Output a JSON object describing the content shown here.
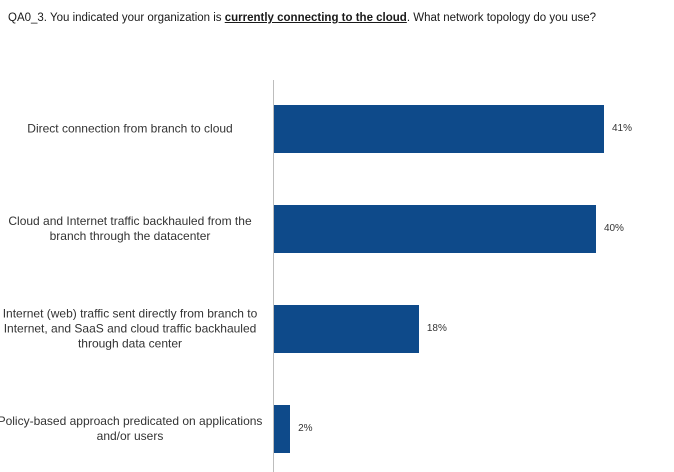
{
  "question": {
    "prefix": "QA0_3. You indicated your organization is ",
    "emphasis": "currently connecting to the cloud",
    "suffix": ". What network  topology do you use?"
  },
  "colors": {
    "bar": "#0e4a8a",
    "axis": "#bdbdbd"
  },
  "chart_data": {
    "type": "bar",
    "orientation": "horizontal",
    "title": "QA0_3. You indicated your organization is currently connecting to the cloud. What network  topology do you use?",
    "xlabel": "",
    "ylabel": "",
    "categories": [
      "Direct connection from branch to cloud",
      "Cloud and Internet traffic backhauled from the branch through the datacenter",
      "Internet (web) traffic sent directly from branch to Internet, and SaaS and cloud traffic backhauled through data center",
      "Policy-based approach predicated on applications and/or users"
    ],
    "values": [
      41,
      40,
      18,
      2
    ],
    "value_labels": [
      "41%",
      "40%",
      "18%",
      "2%"
    ],
    "unit": "%",
    "xlim": [
      0,
      41
    ],
    "grid": false,
    "legend": "none"
  }
}
